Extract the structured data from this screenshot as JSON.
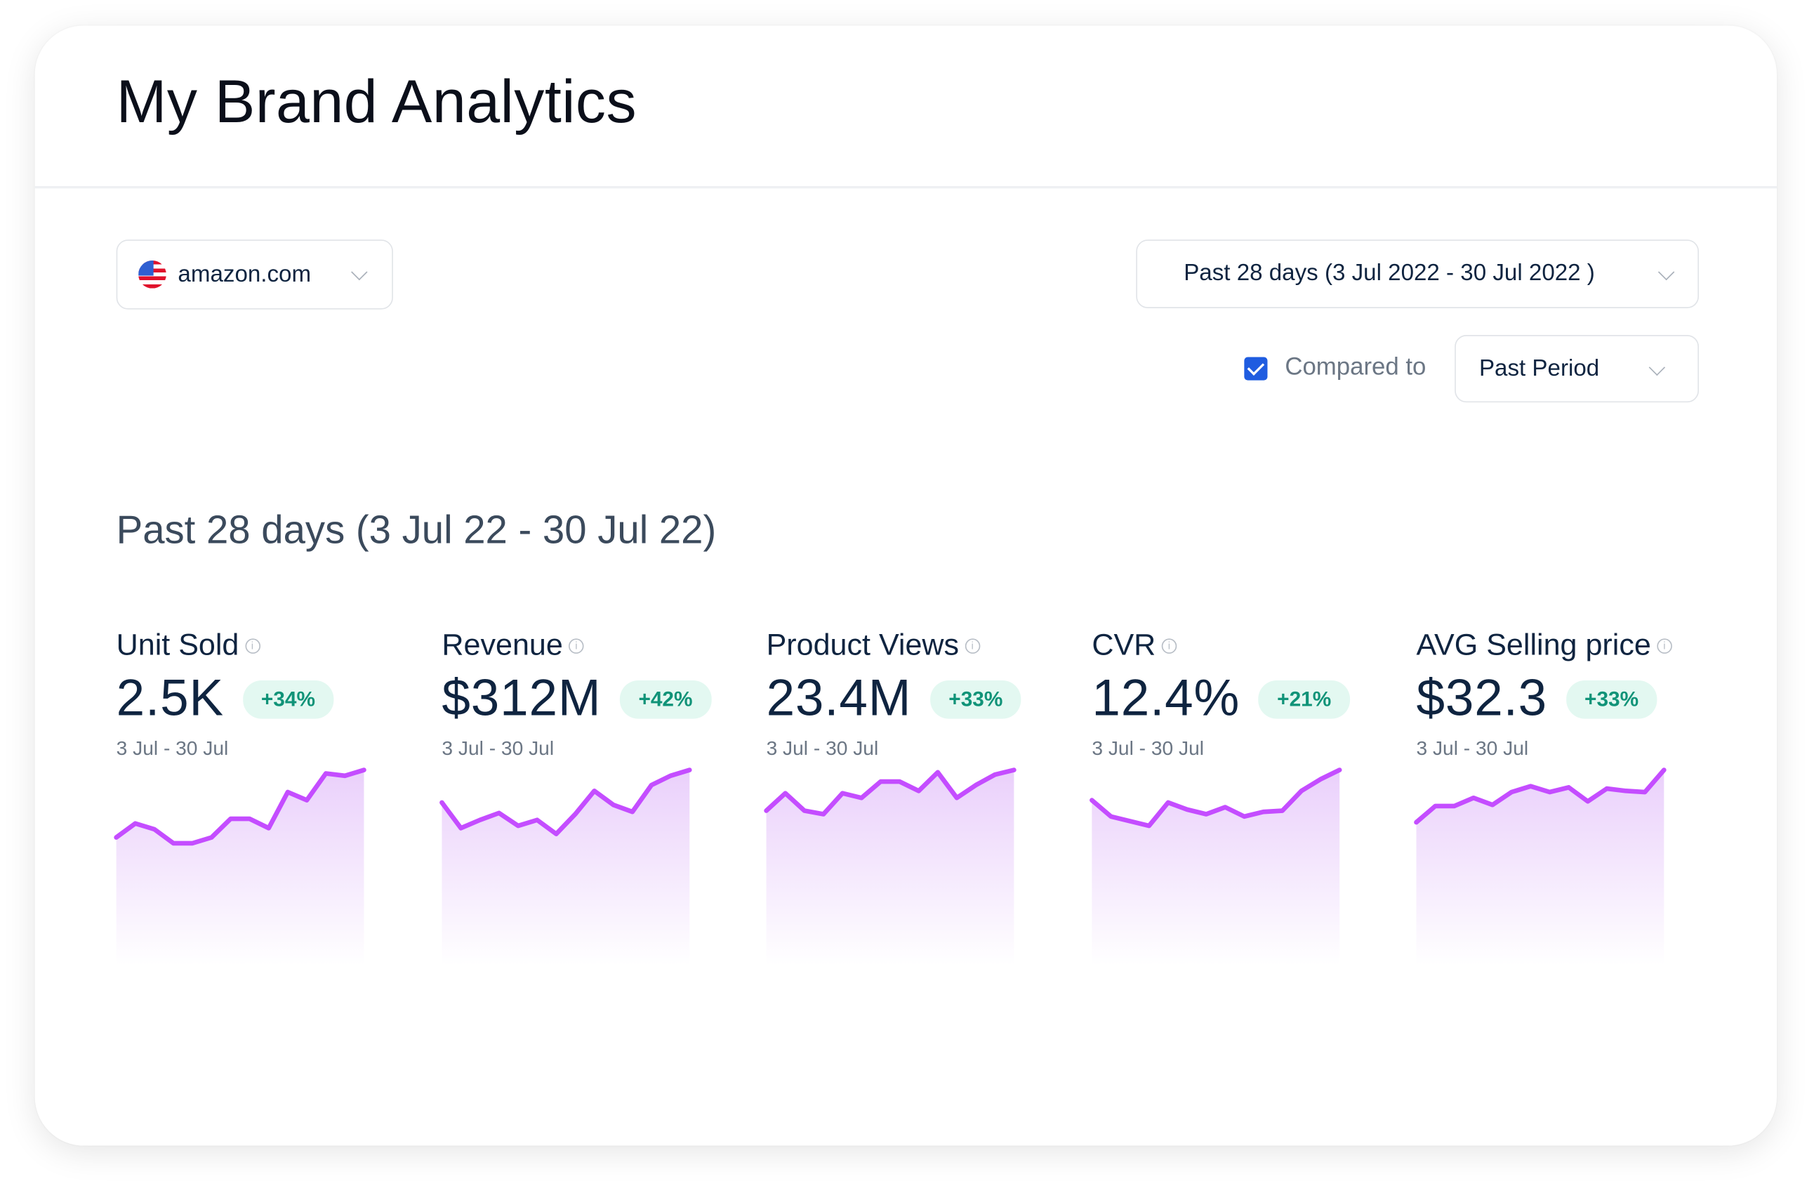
{
  "header": {
    "title": "My Brand Analytics"
  },
  "filters": {
    "marketplace": {
      "value": "amazon.com",
      "icon": "us-flag-icon"
    },
    "date_range": {
      "value": "Past 28 days (3 Jul 2022 - 30 Jul 2022 )"
    },
    "compare": {
      "checked": true,
      "label": "Compared to",
      "value": "Past Period"
    }
  },
  "section_title": "Past 28 days (3 Jul 22 - 30 Jul 22)",
  "colors": {
    "line": "#c44dff",
    "badge_bg": "#e3f8f1",
    "badge_text": "#109378",
    "checkbox": "#1f5ce0"
  },
  "metrics": [
    {
      "label": "Unit Sold",
      "value": "2.5K",
      "change": "+34%",
      "date": "3 Jul - 30 Jul"
    },
    {
      "label": "Revenue",
      "value": "$312M",
      "change": "+42%",
      "date": "3 Jul - 30 Jul"
    },
    {
      "label": "Product Views",
      "value": "23.4M",
      "change": "+33%",
      "date": "3 Jul - 30 Jul"
    },
    {
      "label": "CVR",
      "value": "12.4%",
      "change": "+21%",
      "date": "3 Jul - 30 Jul"
    },
    {
      "label": "AVG Selling price",
      "value": "$32.3",
      "change": "+33%",
      "date": "3 Jul - 30 Jul"
    }
  ],
  "chart_data": [
    {
      "type": "area",
      "series": [
        {
          "values": [
            110,
            122,
            117,
            105,
            105,
            110,
            126,
            126,
            118,
            149,
            142,
            165,
            163,
            168
          ]
        }
      ]
    },
    {
      "type": "area",
      "series": [
        {
          "values": [
            140,
            118,
            125,
            131,
            120,
            125,
            113,
            130,
            150,
            138,
            132,
            155,
            163,
            168
          ]
        }
      ]
    },
    {
      "type": "area",
      "series": [
        {
          "values": [
            133,
            148,
            133,
            130,
            148,
            144,
            158,
            158,
            150,
            166,
            144,
            155,
            164,
            168
          ]
        }
      ]
    },
    {
      "type": "area",
      "series": [
        {
          "values": [
            142,
            128,
            124,
            120,
            140,
            134,
            130,
            136,
            128,
            132,
            133,
            150,
            160,
            168
          ]
        }
      ]
    },
    {
      "type": "area",
      "series": [
        {
          "values": [
            123,
            137,
            137,
            144,
            138,
            149,
            154,
            149,
            153,
            141,
            152,
            150,
            149,
            168
          ]
        }
      ]
    }
  ]
}
